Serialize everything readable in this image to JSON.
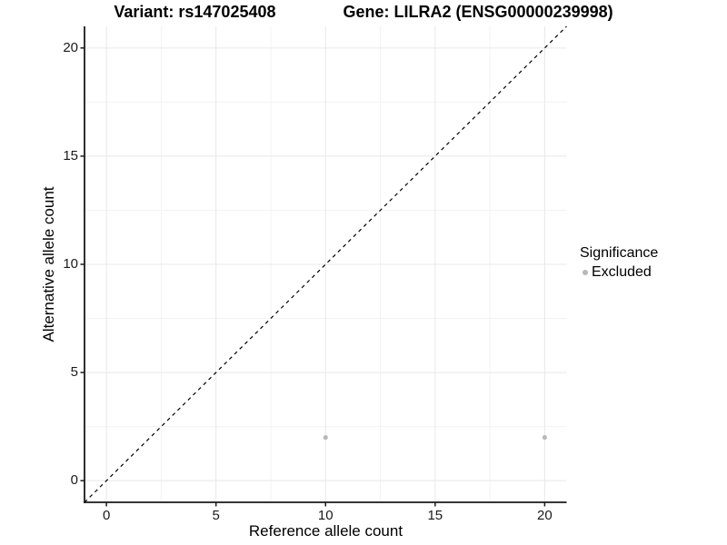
{
  "title": {
    "left": "Variant: rs147025408",
    "right": "Gene: LILRA2 (ENSG00000239998)"
  },
  "legend": {
    "title": "Significance",
    "items": [
      {
        "label": "Excluded",
        "color": "#b9b9b9"
      }
    ]
  },
  "chart_data": {
    "type": "scatter",
    "title": "Variant: rs147025408   Gene: LILRA2 (ENSG00000239998)",
    "xlabel": "Reference allele count",
    "ylabel": "Alternative allele count",
    "xlim": [
      -1,
      21
    ],
    "ylim": [
      -1,
      21
    ],
    "x_ticks": [
      0,
      5,
      10,
      15,
      20
    ],
    "y_ticks": [
      0,
      5,
      10,
      15,
      20
    ],
    "x_minor_ticks": [
      2.5,
      7.5,
      12.5,
      17.5
    ],
    "y_minor_ticks": [
      2.5,
      7.5,
      12.5,
      17.5
    ],
    "grid": true,
    "legend_position": "right",
    "series": [
      {
        "name": "Excluded",
        "color": "#b9b9b9",
        "points": [
          [
            10,
            2
          ],
          [
            20,
            2
          ]
        ]
      }
    ],
    "reference_line": {
      "type": "identity y=x",
      "style": "dashed",
      "color": "#000000"
    }
  },
  "colors": {
    "axis_line": "#1a1a1a",
    "tick_mark": "#1a1a1a",
    "grid_major": "#e8e8e8",
    "grid_minor": "#f3f3f3",
    "background": "#ffffff"
  }
}
